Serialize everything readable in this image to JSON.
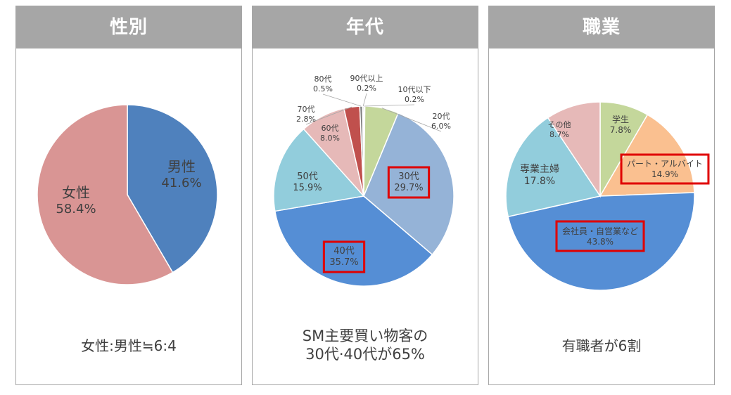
{
  "chart_data": [
    {
      "type": "pie",
      "title": "性別",
      "caption": "女性:男性≒6:4",
      "slices": [
        {
          "name": "男性",
          "value": 41.6,
          "value_label": "41.6%",
          "color": "#4f81bd"
        },
        {
          "name": "女性",
          "value": 58.4,
          "value_label": "58.4%",
          "color": "#d99594"
        }
      ]
    },
    {
      "type": "pie",
      "title": "年代",
      "caption": [
        "SM主要買い物客の",
        "30代·40代が65%"
      ],
      "slices": [
        {
          "name": "10代以下",
          "value": 0.2,
          "value_label": "0.2%",
          "color": "#9bbb59"
        },
        {
          "name": "20代",
          "value": 6.0,
          "value_label": "6.0%",
          "color": "#c4d79b"
        },
        {
          "name": "30代",
          "value": 29.7,
          "value_label": "29.7%",
          "color": "#95b3d7",
          "highlighted": true
        },
        {
          "name": "40代",
          "value": 35.7,
          "value_label": "35.7%",
          "color": "#558ed5",
          "highlighted": true
        },
        {
          "name": "50代",
          "value": 15.9,
          "value_label": "15.9%",
          "color": "#92cddc"
        },
        {
          "name": "60代",
          "value": 8.0,
          "value_label": "8.0%",
          "color": "#e6b9b8"
        },
        {
          "name": "70代",
          "value": 2.8,
          "value_label": "2.8%",
          "color": "#c0504d"
        },
        {
          "name": "80代",
          "value": 0.5,
          "value_label": "0.5%",
          "color": "#7f7f7f"
        },
        {
          "name": "90代以上",
          "value": 0.2,
          "value_label": "0.2%",
          "color": "#404040"
        }
      ]
    },
    {
      "type": "pie",
      "title": "職業",
      "caption": "有職者が6割",
      "slices": [
        {
          "name": "学生",
          "value": 7.8,
          "value_label": "7.8%",
          "color": "#c4d79b"
        },
        {
          "name": "パート・アルバイト",
          "value": 14.9,
          "value_label": "14.9%",
          "color": "#fac090",
          "highlighted": true
        },
        {
          "name": "会社員・自営業など",
          "value": 43.8,
          "value_label": "43.8%",
          "color": "#558ed5",
          "highlighted": true
        },
        {
          "name": "専業主婦",
          "value": 17.8,
          "value_label": "17.8%",
          "color": "#92cddc"
        },
        {
          "name": "その他",
          "value": 8.7,
          "value_label": "8.7%",
          "color": "#e6b9b8"
        }
      ]
    }
  ]
}
